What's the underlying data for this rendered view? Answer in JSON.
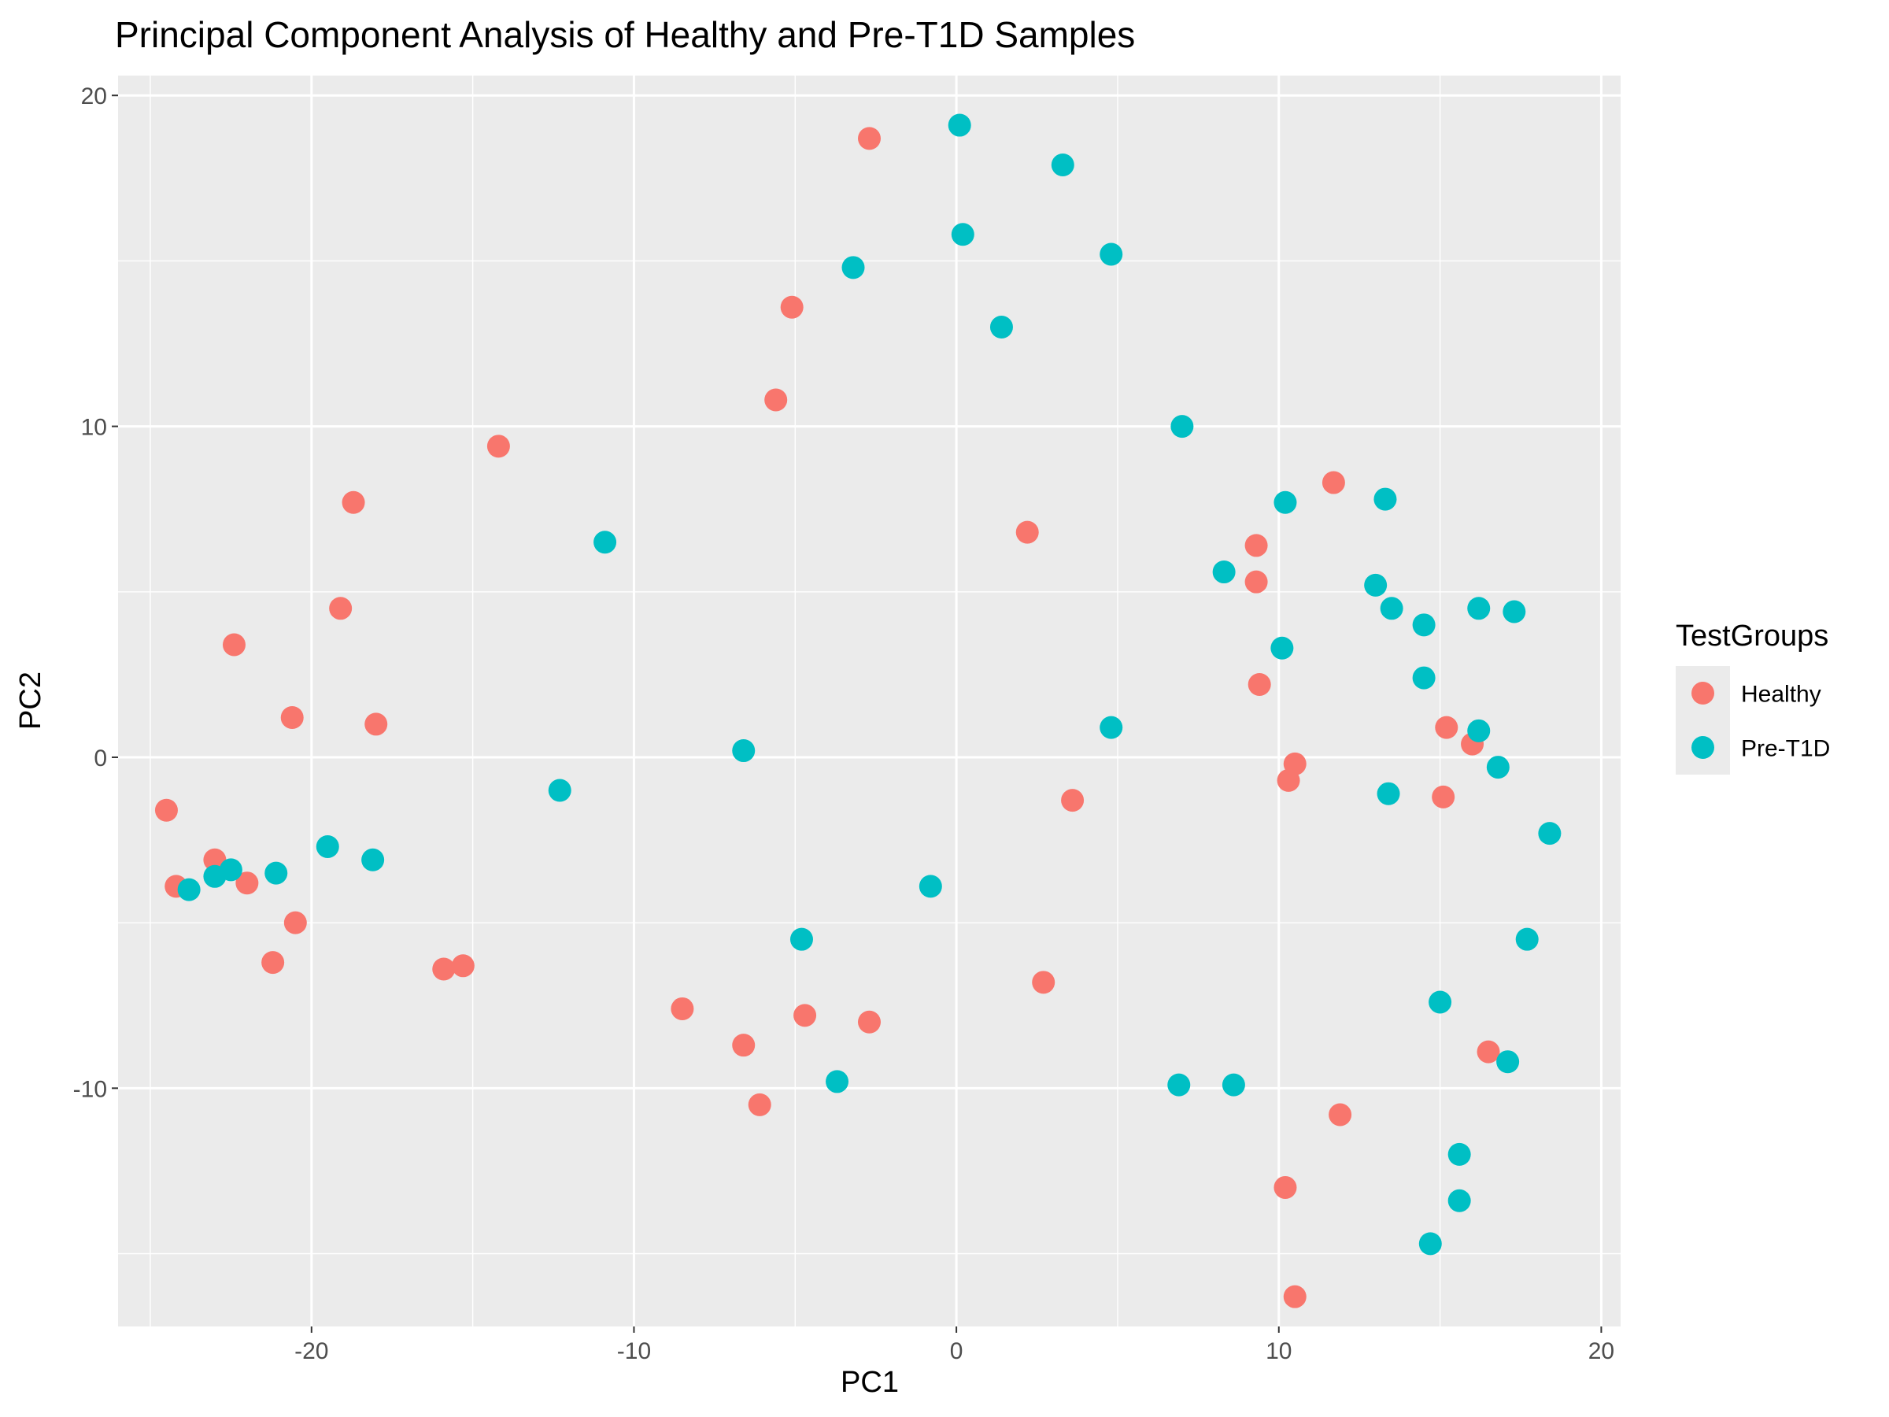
{
  "chart_data": {
    "type": "scatter",
    "title": "Principal Component Analysis of Healthy and Pre-T1D Samples",
    "xlabel": "PC1",
    "ylabel": "PC2",
    "xlim": [
      -26.0,
      20.6
    ],
    "ylim": [
      -17.2,
      20.6
    ],
    "x_ticks": [
      -20,
      -10,
      0,
      10,
      20
    ],
    "x_tick_labels": [
      "-20",
      "-10",
      "0",
      "10",
      "20"
    ],
    "y_ticks": [
      -10,
      0,
      10,
      20
    ],
    "y_tick_labels": [
      "-10",
      "0",
      "10",
      "20"
    ],
    "grid": true,
    "panel_background": "#ebebeb",
    "legend": {
      "title": "TestGroups",
      "position": "right"
    },
    "series": [
      {
        "name": "Healthy",
        "color": "#f8766d",
        "points": [
          [
            -2.7,
            18.7
          ],
          [
            -5.1,
            13.6
          ],
          [
            -5.6,
            10.8
          ],
          [
            -14.2,
            9.4
          ],
          [
            -18.7,
            7.7
          ],
          [
            -19.1,
            4.5
          ],
          [
            -22.4,
            3.4
          ],
          [
            -20.6,
            1.2
          ],
          [
            -18.0,
            1.0
          ],
          [
            -24.5,
            -1.6
          ],
          [
            -23.0,
            -3.1
          ],
          [
            -24.2,
            -3.9
          ],
          [
            -22.0,
            -3.8
          ],
          [
            -20.5,
            -5.0
          ],
          [
            -21.2,
            -6.2
          ],
          [
            -15.9,
            -6.4
          ],
          [
            -15.3,
            -6.3
          ],
          [
            -8.5,
            -7.6
          ],
          [
            -6.6,
            -8.7
          ],
          [
            -6.1,
            -10.5
          ],
          [
            -4.7,
            -7.8
          ],
          [
            -2.7,
            -8.0
          ],
          [
            2.2,
            6.8
          ],
          [
            3.6,
            -1.3
          ],
          [
            2.7,
            -6.8
          ],
          [
            9.3,
            6.4
          ],
          [
            9.3,
            5.3
          ],
          [
            9.4,
            2.2
          ],
          [
            10.5,
            -0.2
          ],
          [
            10.3,
            -0.7
          ],
          [
            11.7,
            8.3
          ],
          [
            15.2,
            0.9
          ],
          [
            16.0,
            0.4
          ],
          [
            15.1,
            -1.2
          ],
          [
            16.5,
            -8.9
          ],
          [
            11.9,
            -10.8
          ],
          [
            10.2,
            -13.0
          ],
          [
            10.5,
            -16.3
          ]
        ]
      },
      {
        "name": "Pre-T1D",
        "color": "#00bfc4",
        "points": [
          [
            0.1,
            19.1
          ],
          [
            3.3,
            17.9
          ],
          [
            0.2,
            15.8
          ],
          [
            -3.2,
            14.8
          ],
          [
            4.8,
            15.2
          ],
          [
            1.4,
            13.0
          ],
          [
            7.0,
            10.0
          ],
          [
            -10.9,
            6.5
          ],
          [
            -6.6,
            0.2
          ],
          [
            -12.3,
            -1.0
          ],
          [
            -19.5,
            -2.7
          ],
          [
            -18.1,
            -3.1
          ],
          [
            -21.1,
            -3.5
          ],
          [
            -22.5,
            -3.4
          ],
          [
            -23.0,
            -3.6
          ],
          [
            -23.8,
            -4.0
          ],
          [
            -0.8,
            -3.9
          ],
          [
            -4.8,
            -5.5
          ],
          [
            -3.7,
            -9.8
          ],
          [
            4.8,
            0.9
          ],
          [
            6.9,
            -9.9
          ],
          [
            8.6,
            -9.9
          ],
          [
            10.2,
            7.7
          ],
          [
            13.3,
            7.8
          ],
          [
            8.3,
            5.6
          ],
          [
            13.0,
            5.2
          ],
          [
            13.5,
            4.5
          ],
          [
            14.5,
            4.0
          ],
          [
            16.2,
            4.5
          ],
          [
            17.3,
            4.4
          ],
          [
            10.1,
            3.3
          ],
          [
            14.5,
            2.4
          ],
          [
            16.2,
            0.8
          ],
          [
            16.8,
            -0.3
          ],
          [
            13.4,
            -1.1
          ],
          [
            18.4,
            -2.3
          ],
          [
            17.7,
            -5.5
          ],
          [
            15.0,
            -7.4
          ],
          [
            17.1,
            -9.2
          ],
          [
            15.6,
            -12.0
          ],
          [
            15.6,
            -13.4
          ],
          [
            14.7,
            -14.7
          ]
        ]
      }
    ]
  }
}
